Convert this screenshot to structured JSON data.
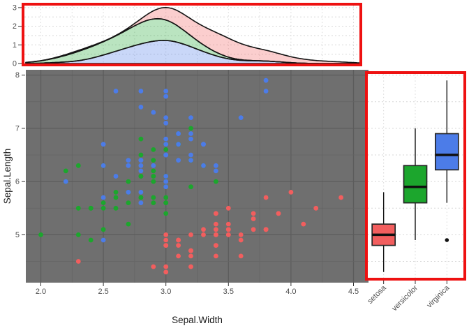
{
  "axes": {
    "x_title": "Sepal.Width",
    "y_title": "Sepal.Length",
    "x_ticks": [
      {
        "v": 2.0,
        "t": "2.0"
      },
      {
        "v": 2.5,
        "t": "2.5"
      },
      {
        "v": 3.0,
        "t": "3.0"
      },
      {
        "v": 3.5,
        "t": "3.5"
      },
      {
        "v": 4.0,
        "t": "4.0"
      },
      {
        "v": 4.5,
        "t": "4.5"
      }
    ],
    "y_ticks": [
      {
        "v": 5,
        "t": "5"
      },
      {
        "v": 6,
        "t": "6"
      },
      {
        "v": 7,
        "t": "7"
      },
      {
        "v": 8,
        "t": "8"
      }
    ],
    "density_ticks": [
      {
        "v": 0,
        "t": "0"
      },
      {
        "v": 1,
        "t": "1"
      },
      {
        "v": 2,
        "t": "2"
      },
      {
        "v": 3,
        "t": "3"
      }
    ],
    "box_categories": [
      "setosa",
      "versicolor",
      "virginica"
    ]
  },
  "colors": {
    "setosa": "#F25E5E",
    "versicolor": "#1CA62D",
    "virginica": "#4C7CE8",
    "highlight_red": "#EE1111",
    "scatter_panel_bg": "#6F6F6F",
    "scatter_grid_major": "#5C5C5C",
    "scatter_grid_minor": "#646464",
    "marginal_panel_bg": "#FFFFFF",
    "marginal_grid": "#D7D7D7",
    "curve_stroke": "#141414",
    "box_stroke": "#262626",
    "median_stroke": "#101010",
    "outlier": "#111111",
    "tick_text": "#4D4D4D",
    "tick_mark": "#333333",
    "axis_title_text": "#1A1A1A"
  },
  "chart_data": [
    {
      "type": "scatter",
      "xlabel": "Sepal.Width",
      "ylabel": "Sepal.Length",
      "xlim": [
        1.88,
        4.62
      ],
      "ylim": [
        4.1,
        8.1
      ],
      "x_tick_values": [
        2.0,
        2.5,
        3.0,
        3.5,
        4.0,
        4.5
      ],
      "y_tick_values": [
        5,
        6,
        7,
        8
      ],
      "grid": "on",
      "series": [
        {
          "name": "setosa",
          "x": [
            3.5,
            3.0,
            3.2,
            3.1,
            3.6,
            3.9,
            3.4,
            3.4,
            2.9,
            3.1,
            3.7,
            3.4,
            3.0,
            3.0,
            4.0,
            4.4,
            3.9,
            3.5,
            3.8,
            3.8,
            3.4,
            3.7,
            3.6,
            3.3,
            3.4,
            3.0,
            3.4,
            3.5,
            3.4,
            3.2,
            3.1,
            3.4,
            4.1,
            4.2,
            3.1,
            3.2,
            3.5,
            3.6,
            3.0,
            3.4,
            3.5,
            2.3,
            3.2,
            3.5,
            3.8,
            3.0,
            3.8,
            3.2,
            3.7,
            3.3
          ],
          "y": [
            5.1,
            4.9,
            4.7,
            4.6,
            5.0,
            5.4,
            4.6,
            5.0,
            4.4,
            4.9,
            5.4,
            4.8,
            4.8,
            4.3,
            5.8,
            5.7,
            5.4,
            5.1,
            5.7,
            5.1,
            5.4,
            5.1,
            4.6,
            5.1,
            4.8,
            5.0,
            5.0,
            5.2,
            5.2,
            4.7,
            4.8,
            5.4,
            5.2,
            5.5,
            4.9,
            5.0,
            5.5,
            4.9,
            4.4,
            5.1,
            5.0,
            4.5,
            4.4,
            5.0,
            5.1,
            4.8,
            5.1,
            4.6,
            5.3,
            5.0
          ]
        },
        {
          "name": "versicolor",
          "x": [
            3.2,
            3.2,
            3.1,
            2.3,
            2.8,
            2.8,
            3.3,
            2.4,
            2.9,
            2.7,
            2.0,
            3.0,
            2.2,
            2.9,
            2.9,
            3.1,
            3.0,
            2.7,
            2.2,
            2.5,
            3.2,
            2.8,
            2.5,
            2.8,
            2.9,
            3.0,
            2.8,
            3.0,
            2.9,
            2.6,
            2.4,
            2.4,
            2.7,
            2.7,
            3.0,
            3.4,
            3.1,
            2.3,
            3.0,
            2.5,
            2.6,
            3.0,
            2.6,
            2.3,
            2.7,
            3.0,
            2.9,
            2.9,
            2.5,
            2.8
          ],
          "y": [
            7.0,
            6.4,
            6.9,
            5.5,
            6.5,
            5.7,
            6.3,
            4.9,
            6.6,
            5.2,
            5.0,
            5.9,
            6.0,
            6.1,
            5.6,
            6.7,
            5.6,
            5.8,
            6.2,
            5.6,
            5.9,
            6.1,
            6.3,
            6.1,
            6.4,
            6.6,
            6.8,
            6.7,
            6.0,
            5.7,
            5.5,
            5.5,
            5.8,
            6.0,
            5.4,
            6.0,
            6.7,
            6.3,
            5.6,
            5.5,
            5.5,
            6.1,
            5.8,
            5.0,
            5.6,
            5.7,
            5.7,
            6.2,
            5.1,
            5.7
          ]
        },
        {
          "name": "virginica",
          "x": [
            3.3,
            2.7,
            3.0,
            2.9,
            3.0,
            3.0,
            2.5,
            2.9,
            2.5,
            3.6,
            3.2,
            2.7,
            3.0,
            2.5,
            2.8,
            3.2,
            3.0,
            3.8,
            2.6,
            2.2,
            3.2,
            2.8,
            2.8,
            2.7,
            3.3,
            3.2,
            2.8,
            3.0,
            2.8,
            3.0,
            2.8,
            3.8,
            2.8,
            2.8,
            2.6,
            3.0,
            3.4,
            3.1,
            3.0,
            3.1,
            3.1,
            3.1,
            2.7,
            3.2,
            3.3,
            3.0,
            2.5,
            3.0,
            3.4,
            3.0
          ],
          "y": [
            6.3,
            5.8,
            7.1,
            6.3,
            6.5,
            7.6,
            4.9,
            7.3,
            6.7,
            7.2,
            6.5,
            6.4,
            6.8,
            5.7,
            5.8,
            6.4,
            6.5,
            7.7,
            7.7,
            6.0,
            6.9,
            5.6,
            7.7,
            6.3,
            6.7,
            7.2,
            6.2,
            6.1,
            6.4,
            7.2,
            7.4,
            7.9,
            6.4,
            6.3,
            6.1,
            7.7,
            6.3,
            6.4,
            6.0,
            6.9,
            6.7,
            6.9,
            5.8,
            6.8,
            6.7,
            6.7,
            6.3,
            6.5,
            6.2,
            5.9
          ]
        }
      ]
    },
    {
      "type": "area",
      "subtype": "stacked-density-marginal",
      "position": "top",
      "variable": "Sepal.Width",
      "stack_order_bottom_to_top": [
        "virginica",
        "versicolor",
        "setosa"
      ],
      "bandwidth": 0.15,
      "ylim": [
        0,
        3.2
      ],
      "y_tick_values": [
        0,
        1,
        2,
        3
      ],
      "peak_total_density": 3.1,
      "grid": "dashed"
    },
    {
      "type": "boxplot",
      "position": "right",
      "categories": [
        "setosa",
        "versicolor",
        "virginica"
      ],
      "ylim": [
        4.1,
        8.1
      ],
      "stats": [
        {
          "name": "setosa",
          "whislo": 4.3,
          "q1": 4.8,
          "med": 5.0,
          "q3": 5.2,
          "whishi": 5.8,
          "outliers": []
        },
        {
          "name": "versicolor",
          "whislo": 4.9,
          "q1": 5.6,
          "med": 5.9,
          "q3": 6.3,
          "whishi": 7.0,
          "outliers": []
        },
        {
          "name": "virginica",
          "whislo": 5.6,
          "q1": 6.22,
          "med": 6.5,
          "q3": 6.9,
          "whishi": 7.9,
          "outliers": [
            4.9
          ]
        }
      ],
      "grid": "dashed"
    }
  ]
}
